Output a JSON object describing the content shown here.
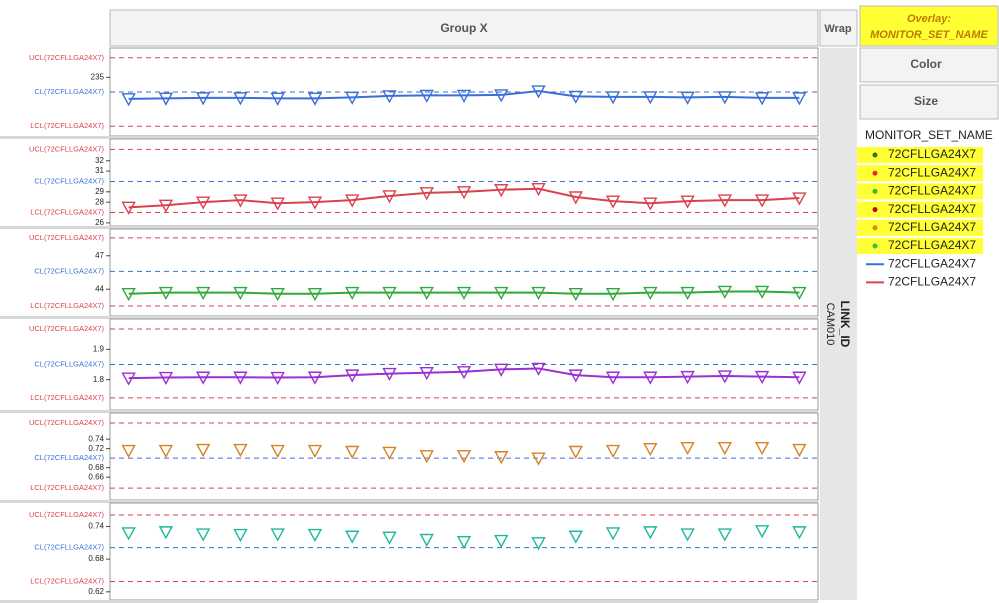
{
  "header": {
    "group": "Group X",
    "wrap": "Wrap",
    "overlay_label": "Overlay:",
    "overlay_value": "MONITOR_SET_NAME"
  },
  "buttons": {
    "color": "Color",
    "size": "Size"
  },
  "legend": {
    "title": "MONITOR_SET_NAME",
    "items": [
      {
        "name": "72CFLLGA24X7",
        "color": "#2b7a1f",
        "kind": "dot"
      },
      {
        "name": "72CFLLGA24X7",
        "color": "#e0302a",
        "kind": "dot"
      },
      {
        "name": "72CFLLGA24X7",
        "color": "#39b53a",
        "kind": "dot"
      },
      {
        "name": "72CFLLGA24X7",
        "color": "#b01010",
        "kind": "dot"
      },
      {
        "name": "72CFLLGA24X7",
        "color": "#e08a1a",
        "kind": "dot"
      },
      {
        "name": "72CFLLGA24X7",
        "color": "#2ec25a",
        "kind": "dot"
      },
      {
        "name": "72CFLLGA24X7",
        "color": "#3b6fd8",
        "kind": "line"
      },
      {
        "name": "72CFLLGA24X7",
        "color": "#d9424f",
        "kind": "line"
      }
    ]
  },
  "strip": {
    "title": "LINK_ID",
    "value": "CAM010"
  },
  "chart_data": [
    {
      "type": "line",
      "color": "#3b6fd8",
      "ylim": [
        223,
        241
      ],
      "yticks": [
        235
      ],
      "limits": [
        {
          "value": 239,
          "label": "UCL(72CFLLGA24X7)",
          "color": "#d9424f"
        },
        {
          "value": 232,
          "label": "CL(72CFLLGA24X7)",
          "color": "#3b6fd8"
        },
        {
          "value": 225,
          "label": "LCL(72CFLLGA24X7)",
          "color": "#d9424f"
        }
      ],
      "values": [
        230.6,
        230.7,
        230.8,
        230.8,
        230.7,
        230.7,
        230.9,
        231.2,
        231.3,
        231.3,
        231.4,
        232.2,
        231.1,
        231.0,
        231.0,
        230.9,
        231.0,
        230.8,
        230.8
      ]
    },
    {
      "type": "line",
      "color": "#d9424f",
      "ylim": [
        25.7,
        34.1
      ],
      "yticks": [
        32,
        31,
        29,
        28,
        26
      ],
      "limits": [
        {
          "value": 33.1,
          "label": "UCL(72CFLLGA24X7)",
          "color": "#d9424f"
        },
        {
          "value": 30,
          "label": "CL(72CFLLGA24X7)",
          "color": "#3b6fd8"
        },
        {
          "value": 27,
          "label": "LCL(72CFLLGA24X7)",
          "color": "#d9424f"
        }
      ],
      "values": [
        27.5,
        27.7,
        28.0,
        28.2,
        27.9,
        28.0,
        28.2,
        28.6,
        28.9,
        29.0,
        29.2,
        29.3,
        28.5,
        28.1,
        27.9,
        28.1,
        28.2,
        28.2,
        28.4
      ]
    },
    {
      "type": "line",
      "color": "#2eaa3a",
      "ylim": [
        41.6,
        49.4
      ],
      "yticks": [
        47,
        44
      ],
      "limits": [
        {
          "value": 48.6,
          "label": "UCL(72CFLLGA24X7)",
          "color": "#d9424f"
        },
        {
          "value": 45.6,
          "label": "CL(72CFLLGA24X7)",
          "color": "#3b6fd8"
        },
        {
          "value": 42.5,
          "label": "LCL(72CFLLGA24X7)",
          "color": "#d9424f"
        }
      ],
      "values": [
        43.6,
        43.7,
        43.7,
        43.7,
        43.6,
        43.6,
        43.7,
        43.7,
        43.7,
        43.7,
        43.7,
        43.7,
        43.6,
        43.6,
        43.7,
        43.7,
        43.8,
        43.8,
        43.7
      ]
    },
    {
      "type": "line",
      "color": "#9b2fd1",
      "ylim": [
        1.7,
        2.0
      ],
      "yticks": [
        1.9,
        1.8
      ],
      "limits": [
        {
          "value": 1.967,
          "label": "UCL(72CFLLGA24X7)",
          "color": "#d9424f"
        },
        {
          "value": 1.85,
          "label": "CL(72CFLLGA24X7)",
          "color": "#3b6fd8"
        },
        {
          "value": 1.74,
          "label": "LCL(72CFLLGA24X7)",
          "color": "#d9424f"
        }
      ],
      "values": [
        1.805,
        1.807,
        1.808,
        1.808,
        1.807,
        1.808,
        1.815,
        1.82,
        1.823,
        1.826,
        1.834,
        1.837,
        1.815,
        1.808,
        1.808,
        1.81,
        1.812,
        1.81,
        1.808
      ]
    },
    {
      "type": "points",
      "color": "#d98020",
      "ylim": [
        0.612,
        0.795
      ],
      "yticks": [
        0.74,
        0.72,
        0.68,
        0.66
      ],
      "limits": [
        {
          "value": 0.774,
          "label": "UCL(72CFLLGA24X7)",
          "color": "#d9424f"
        },
        {
          "value": 0.7,
          "label": "CL(72CFLLGA24X7)",
          "color": "#3b6fd8"
        },
        {
          "value": 0.637,
          "label": "LCL(72CFLLGA24X7)",
          "color": "#d9424f"
        }
      ],
      "values": [
        0.716,
        0.716,
        0.718,
        0.718,
        0.716,
        0.716,
        0.714,
        0.712,
        0.705,
        0.705,
        0.703,
        0.7,
        0.714,
        0.716,
        0.72,
        0.722,
        0.722,
        0.722,
        0.718
      ]
    },
    {
      "type": "points",
      "color": "#1fb89a",
      "ylim": [
        0.605,
        0.783
      ],
      "yticks": [
        0.74,
        0.68,
        0.62
      ],
      "limits": [
        {
          "value": 0.761,
          "label": "UCL(72CFLLGA24X7)",
          "color": "#d9424f"
        },
        {
          "value": 0.701,
          "label": "CL(72CFLLGA24X7)",
          "color": "#3b6fd8"
        },
        {
          "value": 0.639,
          "label": "LCL(72CFLLGA24X7)",
          "color": "#d9424f"
        }
      ],
      "values": [
        0.728,
        0.73,
        0.726,
        0.725,
        0.726,
        0.725,
        0.722,
        0.72,
        0.716,
        0.712,
        0.714,
        0.71,
        0.722,
        0.728,
        0.73,
        0.726,
        0.726,
        0.732,
        0.73
      ]
    }
  ]
}
